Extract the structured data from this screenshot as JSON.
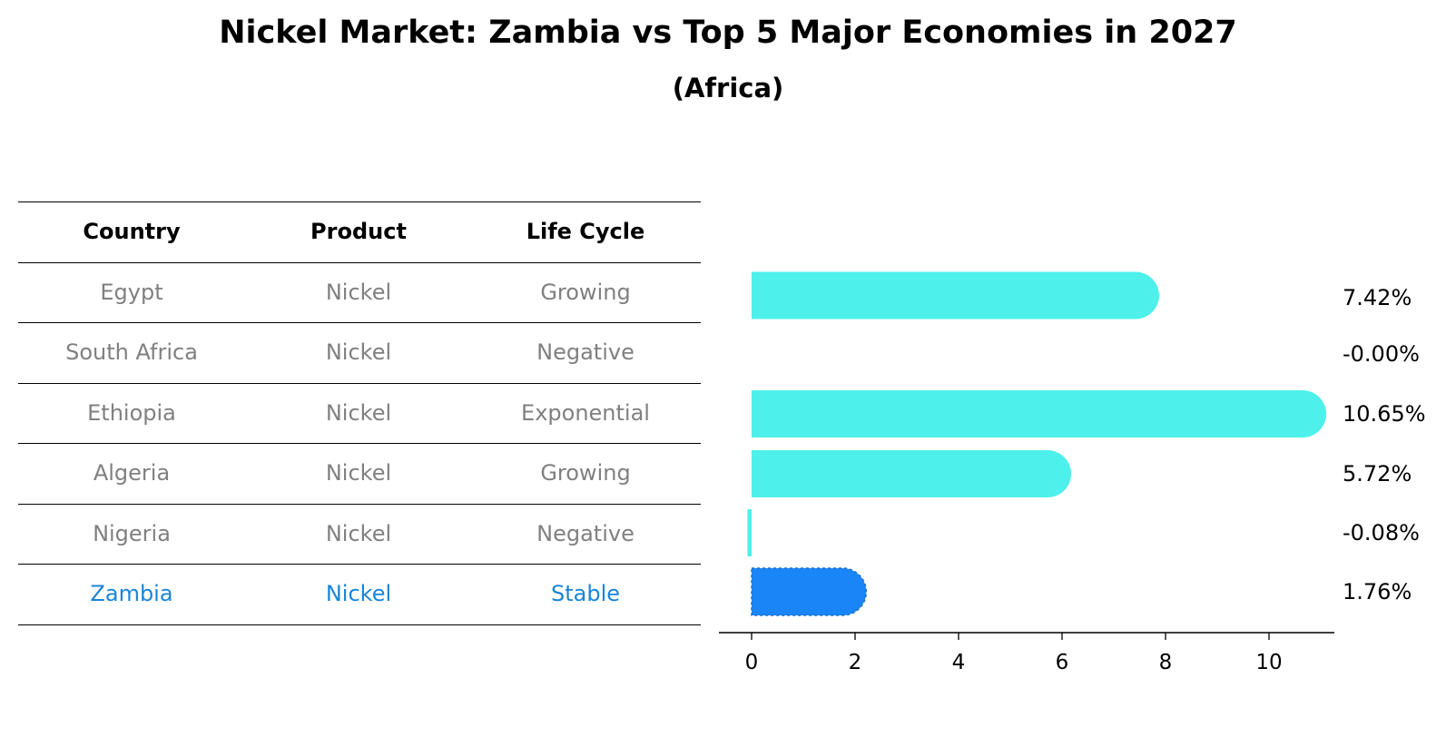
{
  "title": "Nickel Market: Zambia vs Top 5 Major Economies in 2027",
  "subtitle": "(Africa)",
  "table": {
    "headers": [
      "Country",
      "Product",
      "Life Cycle"
    ],
    "rows": [
      {
        "country": "Egypt",
        "product": "Nickel",
        "life_cycle": "Growing"
      },
      {
        "country": "South Africa",
        "product": "Nickel",
        "life_cycle": "Negative"
      },
      {
        "country": "Ethiopia",
        "product": "Nickel",
        "life_cycle": "Exponential"
      },
      {
        "country": "Algeria",
        "product": "Nickel",
        "life_cycle": "Growing"
      },
      {
        "country": "Nigeria",
        "product": "Nickel",
        "life_cycle": "Negative"
      },
      {
        "country": "Zambia",
        "product": "Nickel",
        "life_cycle": "Stable"
      }
    ]
  },
  "chart_data": {
    "type": "bar",
    "orientation": "horizontal",
    "categories": [
      "Egypt",
      "South Africa",
      "Ethiopia",
      "Algeria",
      "Nigeria",
      "Zambia"
    ],
    "values": [
      7.42,
      -0.0,
      10.65,
      5.72,
      -0.08,
      1.76
    ],
    "value_labels": [
      "7.42%",
      "-0.00%",
      "10.65%",
      "5.72%",
      "-0.08%",
      "1.76%"
    ],
    "highlight": "Zambia",
    "xlim": [
      -0.6,
      11.2
    ],
    "xticks": [
      0,
      2,
      4,
      6,
      8,
      10
    ],
    "tick_labels": [
      "0",
      "2",
      "4",
      "6",
      "8",
      "10"
    ],
    "grid": false,
    "colors": {
      "bar": "#4df0ea",
      "highlight": "#1a85f6",
      "highlight_text": "#1a85d6",
      "muted_text": "#808080"
    }
  }
}
